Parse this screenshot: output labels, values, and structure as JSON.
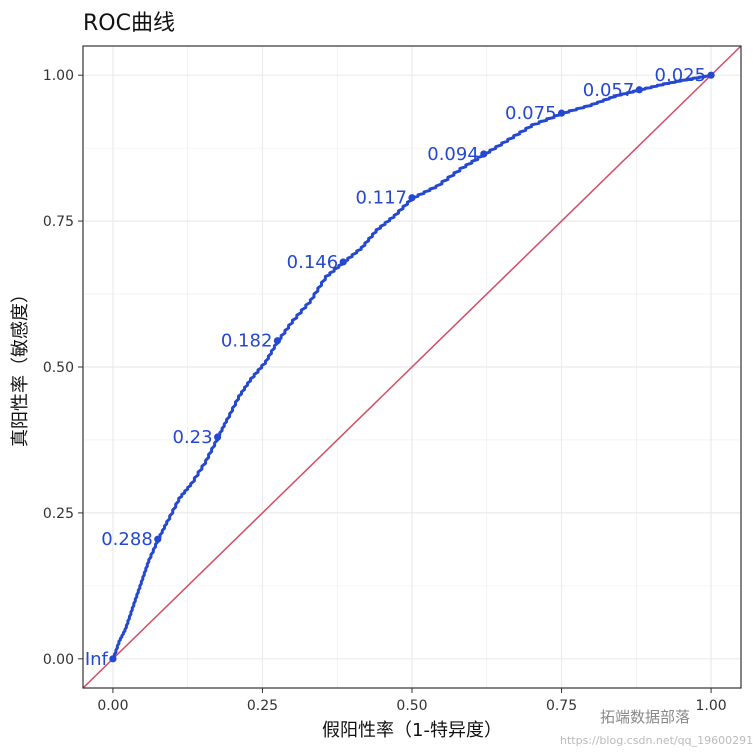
{
  "chart_data": {
    "type": "line",
    "title": "ROC曲线",
    "xlabel": "假阳性率（1-特异度）",
    "ylabel": "真阳性率（敏感度）",
    "xlim": [
      -0.05,
      1.05
    ],
    "ylim": [
      -0.05,
      1.05
    ],
    "x_ticks": [
      0.0,
      0.25,
      0.5,
      0.75,
      1.0
    ],
    "y_ticks": [
      0.0,
      0.25,
      0.5,
      0.75,
      1.0
    ],
    "x_tick_labels": [
      "0.00",
      "0.25",
      "0.50",
      "0.75",
      "1.00"
    ],
    "y_tick_labels": [
      "0.00",
      "0.25",
      "0.50",
      "0.75",
      "1.00"
    ],
    "grid": true,
    "colors": {
      "curve": "#2548d0",
      "diagonal": "#d44d66",
      "label": "#2548d0",
      "grid": "#ebebeb",
      "border": "#333333"
    },
    "series": [
      {
        "values_xy": [
          [
            0.0,
            0.0
          ],
          [
            0.01,
            0.03
          ],
          [
            0.02,
            0.05
          ],
          [
            0.03,
            0.08
          ],
          [
            0.04,
            0.11
          ],
          [
            0.05,
            0.14
          ],
          [
            0.06,
            0.17
          ],
          [
            0.075,
            0.205
          ],
          [
            0.09,
            0.235
          ],
          [
            0.11,
            0.275
          ],
          [
            0.13,
            0.3
          ],
          [
            0.155,
            0.34
          ],
          [
            0.175,
            0.38
          ],
          [
            0.19,
            0.41
          ],
          [
            0.21,
            0.45
          ],
          [
            0.23,
            0.48
          ],
          [
            0.255,
            0.51
          ],
          [
            0.275,
            0.545
          ],
          [
            0.3,
            0.58
          ],
          [
            0.33,
            0.615
          ],
          [
            0.355,
            0.655
          ],
          [
            0.385,
            0.68
          ],
          [
            0.415,
            0.705
          ],
          [
            0.44,
            0.735
          ],
          [
            0.47,
            0.76
          ],
          [
            0.5,
            0.79
          ],
          [
            0.54,
            0.81
          ],
          [
            0.58,
            0.84
          ],
          [
            0.62,
            0.865
          ],
          [
            0.66,
            0.89
          ],
          [
            0.7,
            0.915
          ],
          [
            0.75,
            0.935
          ],
          [
            0.8,
            0.95
          ],
          [
            0.84,
            0.965
          ],
          [
            0.88,
            0.975
          ],
          [
            0.92,
            0.985
          ],
          [
            0.96,
            0.993
          ],
          [
            1.0,
            1.0
          ]
        ]
      },
      {
        "values_xy": [
          [
            -0.05,
            -0.05
          ],
          [
            1.05,
            1.05
          ]
        ]
      }
    ],
    "thresholds": [
      {
        "label": "Inf",
        "x": 0.0,
        "y": 0.0
      },
      {
        "label": "0.288",
        "x": 0.075,
        "y": 0.205
      },
      {
        "label": "0.23",
        "x": 0.175,
        "y": 0.38
      },
      {
        "label": "0.182",
        "x": 0.275,
        "y": 0.545
      },
      {
        "label": "0.146",
        "x": 0.385,
        "y": 0.68
      },
      {
        "label": "0.117",
        "x": 0.5,
        "y": 0.79
      },
      {
        "label": "0.094",
        "x": 0.62,
        "y": 0.865
      },
      {
        "label": "0.075",
        "x": 0.75,
        "y": 0.935
      },
      {
        "label": "0.057",
        "x": 0.88,
        "y": 0.975
      },
      {
        "label": "0.025",
        "x": 1.0,
        "y": 1.0
      }
    ]
  },
  "watermark": {
    "text": "拓端数据部落",
    "url": "https://blog.csdn.net/qq_19600291"
  }
}
